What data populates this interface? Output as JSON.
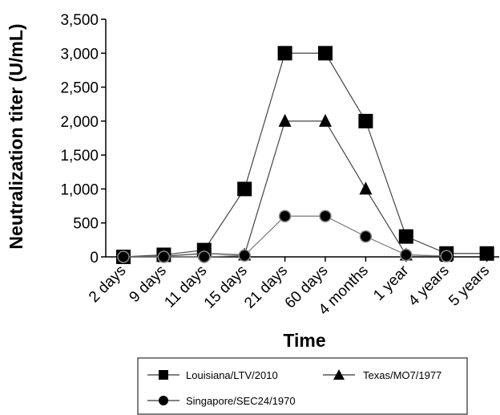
{
  "chart_data": {
    "type": "line",
    "title": "",
    "xlabel": "Time",
    "ylabel": "Neutralization titer (U/mL)",
    "categories": [
      "2 days",
      "9 days",
      "11 days",
      "15 days",
      "21 days",
      "60 days",
      "4 months",
      "1 year",
      "4 years",
      "5 years"
    ],
    "ylim": [
      0,
      3500
    ],
    "yticks": [
      0,
      500,
      1000,
      1500,
      2000,
      2500,
      3000,
      3500
    ],
    "ytick_labels": [
      "0",
      "500",
      "1,000",
      "1,500",
      "2,000",
      "2,500",
      "3,000",
      "3,500"
    ],
    "grid": false,
    "legend_position": "bottom",
    "series": [
      {
        "name": "Louisiana/LTV/2010",
        "marker": "square",
        "values": [
          0,
          30,
          100,
          1000,
          3000,
          3000,
          2000,
          300,
          50,
          50
        ]
      },
      {
        "name": "Texas/MO7/1977",
        "marker": "triangle",
        "values": [
          0,
          10,
          50,
          30,
          2000,
          2000,
          1000,
          30,
          10,
          null
        ]
      },
      {
        "name": "Singapore/SEC24/1970",
        "marker": "circle",
        "values": [
          0,
          0,
          0,
          20,
          600,
          600,
          300,
          30,
          10,
          null
        ]
      }
    ]
  }
}
